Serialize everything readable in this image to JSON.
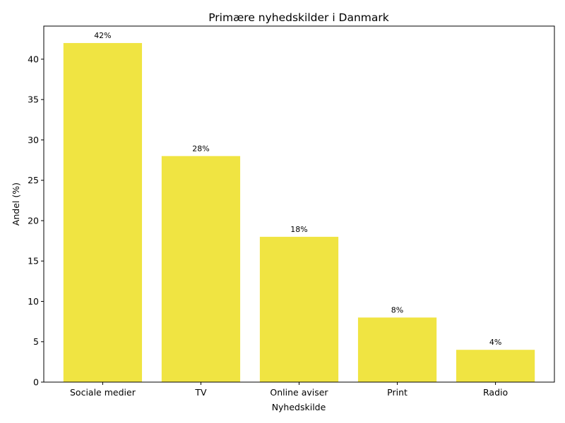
{
  "chart_data": {
    "type": "bar",
    "title": "Primære nyhedskilder i Danmark",
    "xlabel": "Nyhedskilde",
    "ylabel": "Andel (%)",
    "categories": [
      "Sociale medier",
      "TV",
      "Online aviser",
      "Print",
      "Radio"
    ],
    "values": [
      42,
      28,
      18,
      8,
      4
    ],
    "data_labels": [
      "42%",
      "28%",
      "18%",
      "8%",
      "4%"
    ],
    "ylim": [
      0,
      44.1
    ],
    "yticks": [
      0,
      5,
      10,
      15,
      20,
      25,
      30,
      35,
      40
    ],
    "bar_color": "#f0e442",
    "grid": false,
    "legend": "none"
  }
}
